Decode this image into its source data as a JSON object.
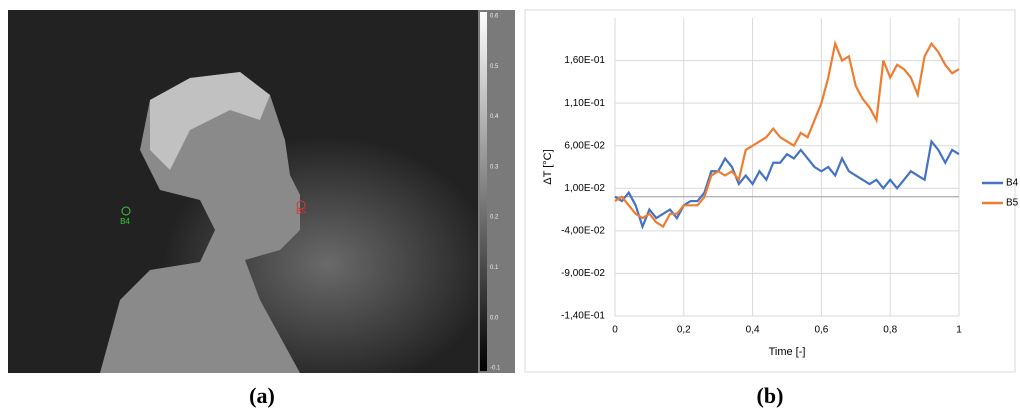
{
  "thermal_image": {
    "markers": [
      "B4",
      "B5"
    ],
    "colorbar_labels": [
      "0.6",
      "0.5",
      "0.4",
      "0.3",
      "0.2",
      "0.1",
      "0.0",
      "-0.1"
    ]
  },
  "captions": [
    "(a)",
    "(b)"
  ],
  "chart_data": {
    "type": "line",
    "x_label": "Time [-]",
    "y_label": "ΔT [°C]",
    "x": [
      0,
      0.02,
      0.04,
      0.06,
      0.08,
      0.1,
      0.12,
      0.14,
      0.16,
      0.18,
      0.2,
      0.22,
      0.24,
      0.26,
      0.28,
      0.3,
      0.32,
      0.34,
      0.36,
      0.38,
      0.4,
      0.42,
      0.44,
      0.46,
      0.48,
      0.5,
      0.52,
      0.54,
      0.56,
      0.58,
      0.6,
      0.62,
      0.64,
      0.66,
      0.68,
      0.7,
      0.72,
      0.74,
      0.76,
      0.78,
      0.8,
      0.82,
      0.84,
      0.86,
      0.88,
      0.9,
      0.92,
      0.94,
      0.96,
      0.98,
      1
    ],
    "series": [
      {
        "name": "B4",
        "color": "#4472c4",
        "values": [
          0,
          -0.005,
          0.005,
          -0.01,
          -0.035,
          -0.015,
          -0.025,
          -0.02,
          -0.015,
          -0.025,
          -0.01,
          -0.005,
          -0.005,
          0.005,
          0.03,
          0.03,
          0.045,
          0.035,
          0.015,
          0.025,
          0.015,
          0.03,
          0.02,
          0.04,
          0.04,
          0.05,
          0.045,
          0.055,
          0.045,
          0.035,
          0.03,
          0.035,
          0.025,
          0.045,
          0.03,
          0.025,
          0.02,
          0.015,
          0.02,
          0.01,
          0.02,
          0.01,
          0.02,
          0.03,
          0.025,
          0.02,
          0.065,
          0.055,
          0.04,
          0.055,
          0.05
        ]
      },
      {
        "name": "B5",
        "color": "#ed7d31",
        "values": [
          -0.005,
          0,
          -0.01,
          -0.02,
          -0.025,
          -0.02,
          -0.03,
          -0.035,
          -0.02,
          -0.02,
          -0.01,
          -0.01,
          -0.01,
          0,
          0.025,
          0.03,
          0.025,
          0.03,
          0.02,
          0.055,
          0.06,
          0.065,
          0.07,
          0.08,
          0.07,
          0.065,
          0.06,
          0.075,
          0.07,
          0.09,
          0.11,
          0.14,
          0.18,
          0.16,
          0.165,
          0.13,
          0.115,
          0.105,
          0.09,
          0.16,
          0.14,
          0.155,
          0.15,
          0.14,
          0.12,
          0.165,
          0.18,
          0.17,
          0.155,
          0.145,
          0.15
        ]
      }
    ],
    "xlim": [
      0,
      1
    ],
    "xticks": [
      0,
      {
        "value": 0.2,
        "label": "0,2"
      },
      {
        "value": 0.4,
        "label": "0,4"
      },
      {
        "value": 0.6,
        "label": "0,6"
      },
      {
        "value": 0.8,
        "label": "0,8"
      },
      1
    ],
    "ylim": [
      -0.14,
      0.21
    ],
    "yticks": [
      {
        "value": -0.14,
        "label": "-1,40E-01"
      },
      {
        "value": -0.09,
        "label": "-9,00E-02"
      },
      {
        "value": -0.04,
        "label": "-4,00E-02"
      },
      {
        "value": 0.01,
        "label": "1,00E-02"
      },
      {
        "value": 0.06,
        "label": "6,00E-02"
      },
      {
        "value": 0.11,
        "label": "1,10E-01"
      },
      {
        "value": 0.16,
        "label": "1,60E-01"
      }
    ],
    "grid": true,
    "legend": "right"
  }
}
